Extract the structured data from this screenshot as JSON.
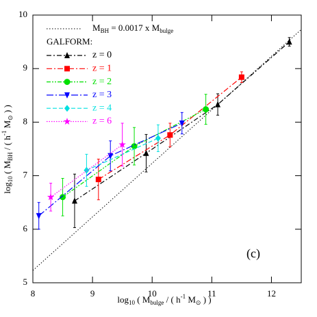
{
  "chart_data": {
    "type": "line",
    "xlabel": [
      "log",
      "10",
      " ( M",
      "bulge",
      " / ( h",
      "-1",
      " M",
      "⊙",
      " ) )"
    ],
    "ylabel": [
      "log",
      "10",
      " ( M",
      "BH",
      " / ( h",
      "-1",
      " M",
      "⊙",
      " ) )"
    ],
    "xlim": [
      8,
      12.5
    ],
    "ylim": [
      5,
      10
    ],
    "xticks": [
      8,
      9,
      10,
      11,
      12
    ],
    "yticks": [
      5,
      6,
      7,
      8,
      9,
      10
    ],
    "annotation": "(c)",
    "legend_title": "GALFORM:",
    "relation": {
      "label": [
        "M",
        "BH",
        " = 0.0017 x M",
        "bulge"
      ],
      "color": "#000000",
      "dash": "1.5,2.5",
      "x": [
        8,
        12.5
      ],
      "values": [
        5.23,
        9.73
      ]
    },
    "series": [
      {
        "name": "z = 0",
        "color": "#000000",
        "dash": "7,3,2,3",
        "marker": "triangle-up",
        "x": [
          8.7,
          9.9,
          11.1,
          12.3
        ],
        "values": [
          6.53,
          7.42,
          8.33,
          9.5
        ],
        "errors": [
          0.5,
          0.35,
          0.2,
          0.08
        ]
      },
      {
        "name": "z = 1",
        "color": "#ff0000",
        "dash": "8,3,2,3",
        "marker": "square",
        "x": [
          9.1,
          10.3,
          11.5
        ],
        "values": [
          6.93,
          7.76,
          8.84
        ],
        "errors": [
          0.38,
          0.22,
          0.1
        ]
      },
      {
        "name": "z = 2",
        "color": "#00e000",
        "dash": "6,2,2,2,2,2",
        "marker": "circle",
        "x": [
          8.5,
          9.7,
          10.9
        ],
        "values": [
          6.6,
          7.55,
          8.24
        ],
        "errors": [
          0.35,
          0.35,
          0.28
        ]
      },
      {
        "name": "z = 3",
        "color": "#0000ff",
        "dash": "10,3,2,3",
        "marker": "triangle-down",
        "x": [
          8.1,
          9.3,
          10.5
        ],
        "values": [
          6.25,
          7.37,
          7.98
        ],
        "errors": [
          0.25,
          0.28,
          0.2
        ]
      },
      {
        "name": "z = 4",
        "color": "#00e0e0",
        "dash": "6,3",
        "marker": "diamond",
        "x": [
          8.9,
          10.1
        ],
        "values": [
          7.1,
          7.7
        ],
        "errors": [
          0.3,
          0.25
        ]
      },
      {
        "name": "z = 6",
        "color": "#ff00ff",
        "dash": "1.5,2",
        "marker": "star",
        "x": [
          8.3,
          9.5
        ],
        "values": [
          6.6,
          7.58
        ],
        "errors": [
          0.26,
          0.4
        ]
      }
    ]
  }
}
